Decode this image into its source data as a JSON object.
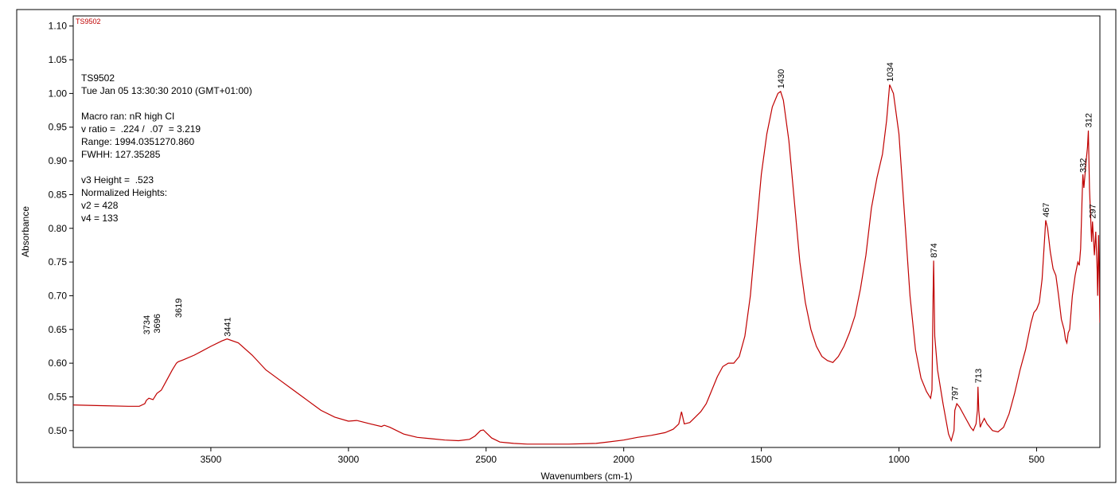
{
  "sample_tag": "TS9502",
  "annotation": {
    "lines": [
      "TS9502",
      "Tue Jan 05 13:30:30 2010 (GMT+01:00)",
      "",
      "Macro ran: nR high CI",
      "v ratio =  .224 /  .07  = 3.219",
      "Range: 1994.0351270.860",
      "FWHH: 127.35285",
      "",
      "v3 Height =  .523",
      "Normalized Heights:",
      "v2 = 428",
      "v4 = 133"
    ]
  },
  "chart_data": {
    "type": "line",
    "title": "",
    "xlabel": "Wavenumbers (cm-1)",
    "ylabel": "Absorbance",
    "xlim": [
      4000,
      270
    ],
    "ylim": [
      0.475,
      1.115
    ],
    "x_reversed": true,
    "grid": false,
    "line_color": "#c00000",
    "x_ticks": [
      "3500",
      "3000",
      "2500",
      "2000",
      "1500",
      "1000",
      "500"
    ],
    "y_ticks": [
      "0.50",
      "0.55",
      "0.60",
      "0.65",
      "0.70",
      "0.75",
      "0.80",
      "0.85",
      "0.90",
      "0.95",
      "1.00",
      "1.05",
      "1.10"
    ],
    "series": [
      {
        "x": [
          4000,
          3900,
          3800,
          3760,
          3740,
          3734,
          3725,
          3710,
          3696,
          3680,
          3660,
          3640,
          3625,
          3619,
          3600,
          3560,
          3500,
          3460,
          3441,
          3400,
          3350,
          3300,
          3250,
          3200,
          3150,
          3100,
          3050,
          3000,
          2970,
          2950,
          2920,
          2880,
          2870,
          2850,
          2800,
          2750,
          2700,
          2650,
          2600,
          2560,
          2540,
          2520,
          2510,
          2500,
          2480,
          2450,
          2400,
          2350,
          2300,
          2250,
          2200,
          2100,
          2000,
          1950,
          1900,
          1850,
          1820,
          1800,
          1790,
          1780,
          1760,
          1740,
          1720,
          1700,
          1680,
          1660,
          1640,
          1620,
          1600,
          1580,
          1560,
          1540,
          1520,
          1500,
          1480,
          1460,
          1440,
          1430,
          1420,
          1400,
          1380,
          1360,
          1340,
          1320,
          1300,
          1280,
          1260,
          1240,
          1220,
          1200,
          1180,
          1160,
          1140,
          1120,
          1100,
          1080,
          1060,
          1045,
          1034,
          1020,
          1000,
          980,
          960,
          940,
          920,
          900,
          885,
          880,
          876,
          874,
          870,
          860,
          840,
          820,
          810,
          800,
          797,
          790,
          780,
          760,
          740,
          730,
          720,
          715,
          713,
          710,
          705,
          700,
          690,
          680,
          660,
          640,
          620,
          600,
          580,
          560,
          540,
          520,
          510,
          500,
          490,
          480,
          470,
          467,
          460,
          450,
          440,
          430,
          420,
          410,
          400,
          395,
          390,
          385,
          380,
          370,
          360,
          350,
          345,
          340,
          335,
          332,
          328,
          320,
          315,
          312,
          308,
          300,
          297,
          290,
          285,
          280,
          278,
          275,
          272,
          270
        ],
        "y": [
          0.538,
          0.537,
          0.536,
          0.536,
          0.54,
          0.545,
          0.548,
          0.546,
          0.555,
          0.56,
          0.575,
          0.59,
          0.6,
          0.602,
          0.605,
          0.612,
          0.625,
          0.633,
          0.636,
          0.63,
          0.612,
          0.59,
          0.575,
          0.56,
          0.545,
          0.53,
          0.52,
          0.514,
          0.515,
          0.513,
          0.51,
          0.506,
          0.508,
          0.505,
          0.495,
          0.49,
          0.488,
          0.486,
          0.485,
          0.487,
          0.492,
          0.5,
          0.501,
          0.497,
          0.489,
          0.483,
          0.481,
          0.48,
          0.48,
          0.48,
          0.48,
          0.481,
          0.486,
          0.49,
          0.493,
          0.497,
          0.502,
          0.51,
          0.528,
          0.51,
          0.512,
          0.52,
          0.528,
          0.54,
          0.56,
          0.58,
          0.595,
          0.6,
          0.6,
          0.61,
          0.64,
          0.7,
          0.79,
          0.88,
          0.94,
          0.98,
          1.0,
          1.003,
          0.99,
          0.93,
          0.84,
          0.75,
          0.69,
          0.65,
          0.625,
          0.61,
          0.604,
          0.601,
          0.61,
          0.625,
          0.645,
          0.67,
          0.71,
          0.76,
          0.83,
          0.875,
          0.91,
          0.96,
          1.013,
          1.0,
          0.94,
          0.82,
          0.7,
          0.62,
          0.578,
          0.558,
          0.548,
          0.56,
          0.7,
          0.752,
          0.64,
          0.59,
          0.54,
          0.495,
          0.485,
          0.5,
          0.53,
          0.54,
          0.535,
          0.52,
          0.505,
          0.5,
          0.51,
          0.53,
          0.565,
          0.53,
          0.505,
          0.51,
          0.518,
          0.51,
          0.5,
          0.498,
          0.505,
          0.525,
          0.555,
          0.59,
          0.62,
          0.66,
          0.675,
          0.68,
          0.69,
          0.725,
          0.79,
          0.812,
          0.8,
          0.765,
          0.74,
          0.73,
          0.7,
          0.665,
          0.65,
          0.635,
          0.63,
          0.645,
          0.65,
          0.7,
          0.73,
          0.75,
          0.745,
          0.77,
          0.84,
          0.88,
          0.86,
          0.9,
          0.92,
          0.945,
          0.86,
          0.78,
          0.81,
          0.76,
          0.795,
          0.74,
          0.7,
          0.79,
          0.72,
          0.66
        ]
      }
    ],
    "peak_labels": [
      {
        "label": "3734",
        "x": 3734,
        "y": 0.64
      },
      {
        "label": "3696",
        "x": 3696,
        "y": 0.642
      },
      {
        "label": "3619",
        "x": 3619,
        "y": 0.665
      },
      {
        "label": "3441",
        "x": 3441,
        "y": 0.637
      },
      {
        "label": "1430",
        "x": 1430,
        "y": 1.005
      },
      {
        "label": "1034",
        "x": 1034,
        "y": 1.015
      },
      {
        "label": "874",
        "x": 874,
        "y": 0.754
      },
      {
        "label": "797",
        "x": 797,
        "y": 0.542
      },
      {
        "label": "713",
        "x": 713,
        "y": 0.568
      },
      {
        "label": "467",
        "x": 467,
        "y": 0.814
      },
      {
        "label": "332",
        "x": 332,
        "y": 0.88
      },
      {
        "label": "312",
        "x": 312,
        "y": 0.947
      },
      {
        "label": "297",
        "x": 297,
        "y": 0.812
      }
    ]
  }
}
